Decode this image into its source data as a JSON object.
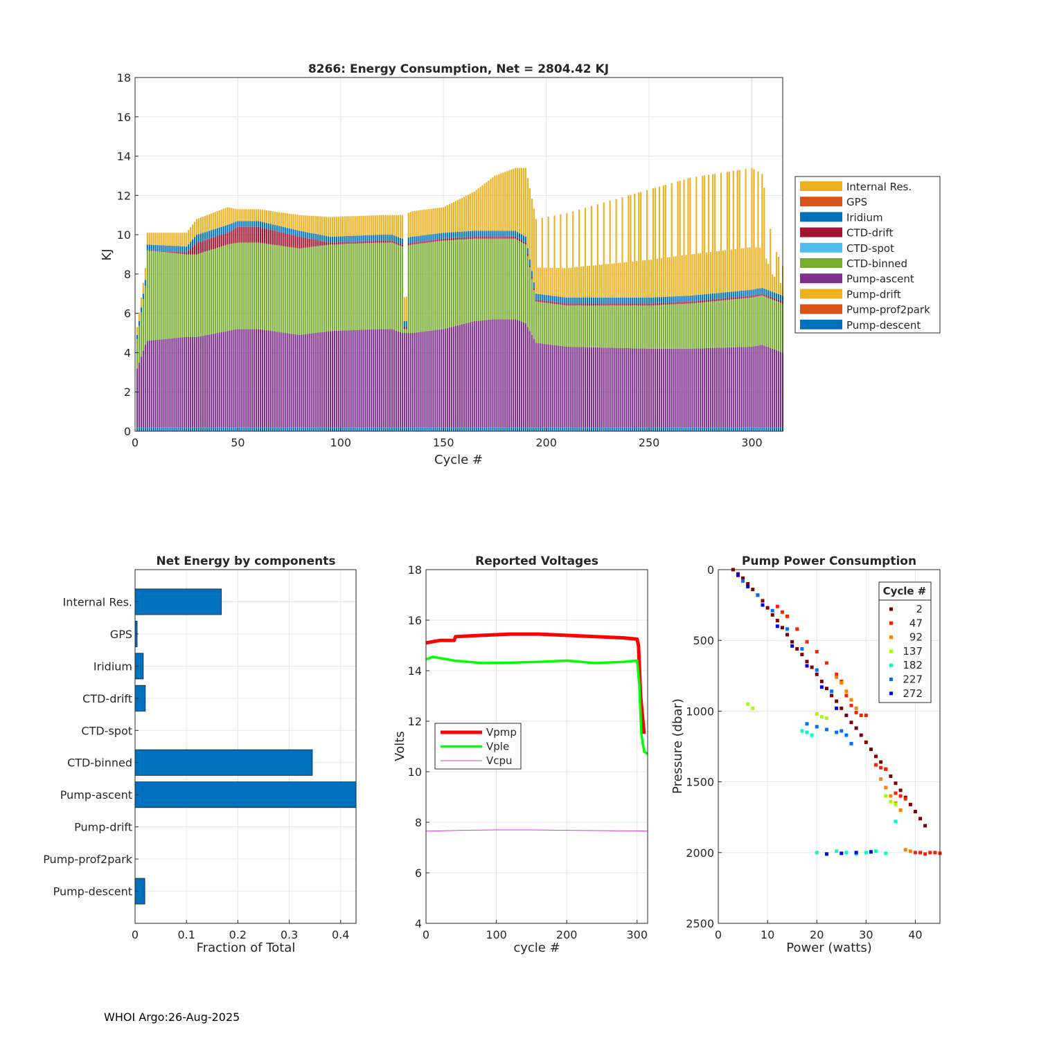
{
  "footer": "WHOI Argo:26-Aug-2025",
  "chart_data": [
    {
      "type": "bar",
      "stacked": true,
      "title": "8266: Energy Consumption,  Net = 2804.42 KJ",
      "xlabel": "Cycle #",
      "ylabel": "KJ",
      "xlim": [
        0,
        315
      ],
      "ylim": [
        0,
        18
      ],
      "xticks": [
        0,
        50,
        100,
        150,
        200,
        250,
        300
      ],
      "yticks": [
        0,
        2,
        4,
        6,
        8,
        10,
        12,
        14,
        16,
        18
      ],
      "grid": true,
      "legend_position": "outside-right",
      "legend": [
        "Internal Res.",
        "GPS",
        "Iridium",
        "CTD-drift",
        "CTD-spot",
        "CTD-binned",
        "Pump-ascent",
        "Pump-drift",
        "Pump-prof2park",
        "Pump-descent"
      ],
      "colors": {
        "Internal Res.": "#EDB120",
        "GPS": "#D95319",
        "Iridium": "#0072BD",
        "CTD-drift": "#A2142F",
        "CTD-spot": "#4DBEEE",
        "CTD-binned": "#77AC30",
        "Pump-ascent": "#7E2F8E",
        "Pump-drift": "#EDB120",
        "Pump-prof2park": "#D95319",
        "Pump-descent": "#0072BD"
      },
      "series_profile": {
        "cycles": [
          1,
          5,
          6,
          25,
          30,
          45,
          50,
          60,
          80,
          95,
          120,
          125,
          130,
          135,
          150,
          165,
          175,
          185,
          190,
          195,
          210,
          250,
          270,
          300,
          305,
          310,
          315
        ],
        "Pump-descent": [
          0.2,
          0.2,
          0.2,
          0.2,
          0.2,
          0.2,
          0.2,
          0.2,
          0.2,
          0.2,
          0.2,
          0.2,
          0.2,
          0.2,
          0.2,
          0.2,
          0.2,
          0.2,
          0.2,
          0.2,
          0.2,
          0.2,
          0.2,
          0.2,
          0.2,
          0.2,
          0.2
        ],
        "Pump-ascent": [
          3.0,
          4.2,
          4.4,
          4.6,
          4.6,
          4.9,
          5.0,
          5.0,
          4.7,
          4.9,
          5.0,
          5.0,
          4.8,
          4.8,
          5.0,
          5.4,
          5.5,
          5.5,
          5.3,
          4.3,
          4.1,
          4.0,
          4.0,
          4.1,
          4.2,
          4.0,
          3.8
        ],
        "CTD-binned": [
          1.5,
          3.0,
          4.6,
          4.2,
          4.2,
          4.4,
          4.4,
          4.4,
          4.4,
          4.4,
          4.4,
          4.4,
          4.4,
          4.5,
          4.5,
          4.2,
          4.1,
          4.1,
          4.0,
          2.1,
          2.1,
          2.2,
          2.3,
          2.5,
          2.5,
          2.5,
          2.5
        ],
        "CTD-drift": [
          0.0,
          0.0,
          0.0,
          0.1,
          0.6,
          0.6,
          0.8,
          0.8,
          0.6,
          0.1,
          0.1,
          0.1,
          0.1,
          0.1,
          0.1,
          0.1,
          0.1,
          0.1,
          0.1,
          0.1,
          0.1,
          0.1,
          0.1,
          0.1,
          0.1,
          0.1,
          0.1
        ],
        "Iridium": [
          0.2,
          0.3,
          0.3,
          0.3,
          0.4,
          0.4,
          0.3,
          0.3,
          0.3,
          0.3,
          0.3,
          0.3,
          0.3,
          0.3,
          0.3,
          0.3,
          0.3,
          0.3,
          0.3,
          0.3,
          0.3,
          0.3,
          0.3,
          0.3,
          0.3,
          0.3,
          0.3
        ],
        "Internal Res.": [
          0.4,
          0.6,
          0.6,
          0.7,
          0.8,
          0.9,
          0.6,
          0.6,
          0.8,
          1.0,
          1.0,
          1.0,
          1.2,
          1.3,
          1.3,
          2.0,
          2.8,
          3.2,
          3.5,
          3.8,
          4.3,
          5.5,
          6.0,
          6.2,
          5.8,
          2.5,
          1.5
        ]
      }
    },
    {
      "type": "bar",
      "orientation": "horizontal",
      "title": "Net Energy by components",
      "xlabel": "Fraction of Total",
      "ylabel": "",
      "xlim": [
        0,
        0.43
      ],
      "xticks": [
        0,
        0.1,
        0.2,
        0.3,
        0.4
      ],
      "grid": true,
      "color": "#0072BD",
      "categories": [
        "Internal Res.",
        "GPS",
        "Iridium",
        "CTD-drift",
        "CTD-spot",
        "CTD-binned",
        "Pump-ascent",
        "Pump-drift",
        "Pump-prof2park",
        "Pump-descent"
      ],
      "values": [
        0.168,
        0.004,
        0.016,
        0.02,
        0.0,
        0.345,
        0.43,
        0.0,
        0.0,
        0.019
      ]
    },
    {
      "type": "line",
      "title": "Reported Voltages",
      "xlabel": "cycle #",
      "ylabel": "Volts",
      "xlim": [
        0,
        315
      ],
      "ylim": [
        4,
        18
      ],
      "xticks": [
        0,
        100,
        200,
        300
      ],
      "yticks": [
        4,
        6,
        8,
        10,
        12,
        14,
        16,
        18
      ],
      "grid": true,
      "legend_position": "left-middle",
      "series": [
        {
          "name": "Vpmp",
          "color": "#FF0000",
          "x": [
            0,
            20,
            40,
            42,
            80,
            120,
            160,
            200,
            240,
            280,
            300,
            302,
            305,
            310
          ],
          "y": [
            15.1,
            15.2,
            15.2,
            15.35,
            15.4,
            15.45,
            15.45,
            15.4,
            15.35,
            15.3,
            15.25,
            15.0,
            13.0,
            11.5
          ]
        },
        {
          "name": "Vple",
          "color": "#00FF00",
          "x": [
            0,
            10,
            40,
            80,
            120,
            160,
            200,
            240,
            280,
            300,
            303,
            306,
            310,
            315
          ],
          "y": [
            14.45,
            14.55,
            14.4,
            14.3,
            14.32,
            14.35,
            14.4,
            14.3,
            14.35,
            14.4,
            13.5,
            11.5,
            10.8,
            10.7
          ]
        },
        {
          "name": "Vcpu",
          "color": "#DD33DD",
          "x": [
            0,
            50,
            100,
            150,
            200,
            250,
            300,
            315
          ],
          "y": [
            7.65,
            7.68,
            7.7,
            7.7,
            7.68,
            7.67,
            7.66,
            7.65
          ]
        }
      ]
    },
    {
      "type": "scatter",
      "title": "Pump Power Consumption",
      "xlabel": "Power (watts)",
      "ylabel": "Pressure (dbar)",
      "xlim": [
        0,
        45
      ],
      "ylim": [
        0,
        2500
      ],
      "y_reversed": true,
      "xticks": [
        0,
        10,
        20,
        30,
        40
      ],
      "yticks": [
        0,
        500,
        1000,
        1500,
        2000,
        2500
      ],
      "grid": true,
      "legend_title": "Cycle #",
      "legend_position": "top-right",
      "series": [
        {
          "name": "2",
          "color": "#800000",
          "x": [
            3,
            4,
            5,
            6,
            7,
            8,
            9,
            10,
            11,
            12,
            13,
            14,
            15,
            16,
            17,
            18,
            19,
            20,
            21,
            22,
            23,
            24,
            25,
            26,
            27,
            28,
            29,
            30,
            31,
            32,
            33,
            34,
            35,
            36,
            37,
            38,
            39,
            40,
            41,
            42
          ],
          "y": [
            0,
            30,
            60,
            100,
            140,
            180,
            220,
            270,
            320,
            360,
            410,
            460,
            510,
            560,
            600,
            650,
            690,
            740,
            790,
            840,
            890,
            930,
            980,
            1030,
            1080,
            1120,
            1170,
            1220,
            1270,
            1320,
            1360,
            1410,
            1460,
            1510,
            1560,
            1610,
            1660,
            1710,
            1760,
            1810
          ]
        },
        {
          "name": "47",
          "color": "#FF2000",
          "x": [
            12,
            13,
            14,
            16,
            18,
            20,
            22,
            24,
            25,
            26,
            27,
            28,
            29,
            30,
            32,
            33,
            34,
            36,
            37,
            38,
            40,
            41,
            42,
            43,
            44,
            45
          ],
          "y": [
            260,
            300,
            330,
            420,
            510,
            580,
            660,
            740,
            790,
            890,
            960,
            1010,
            1030,
            1030,
            1380,
            1400,
            1410,
            1580,
            1600,
            1620,
            2000,
            2000,
            2010,
            2000,
            2000,
            2005
          ]
        },
        {
          "name": "92",
          "color": "#FF8000",
          "x": [
            24,
            25,
            26,
            27,
            28,
            33,
            34,
            35,
            36,
            37,
            38,
            39
          ],
          "y": [
            760,
            800,
            860,
            920,
            980,
            1480,
            1540,
            1600,
            1650,
            1700,
            1980,
            1990
          ]
        },
        {
          "name": "137",
          "color": "#A0FF00",
          "x": [
            6,
            7,
            20,
            21,
            22,
            34,
            35,
            36
          ],
          "y": [
            950,
            980,
            1020,
            1040,
            1050,
            1600,
            1640,
            1660
          ]
        },
        {
          "name": "182",
          "color": "#00FFC0",
          "x": [
            17,
            18,
            19,
            20,
            22,
            24,
            26,
            28,
            30,
            32,
            34,
            36
          ],
          "y": [
            1140,
            1150,
            1170,
            2000,
            2010,
            1990,
            2000,
            2010,
            2000,
            1990,
            2005,
            1780
          ]
        },
        {
          "name": "227",
          "color": "#0070FF",
          "x": [
            5,
            8,
            11,
            14,
            17,
            20,
            23,
            25,
            27,
            18,
            20,
            22,
            24,
            26
          ],
          "y": [
            80,
            180,
            290,
            420,
            560,
            710,
            860,
            1140,
            1230,
            1090,
            1110,
            1130,
            1150,
            1170
          ]
        },
        {
          "name": "272",
          "color": "#0000FF",
          "x": [
            4,
            6,
            9,
            12,
            15,
            18,
            21,
            24,
            22,
            25,
            28,
            31
          ],
          "y": [
            40,
            120,
            250,
            400,
            540,
            680,
            830,
            980,
            2010,
            2005,
            2000,
            1995
          ]
        }
      ]
    }
  ]
}
